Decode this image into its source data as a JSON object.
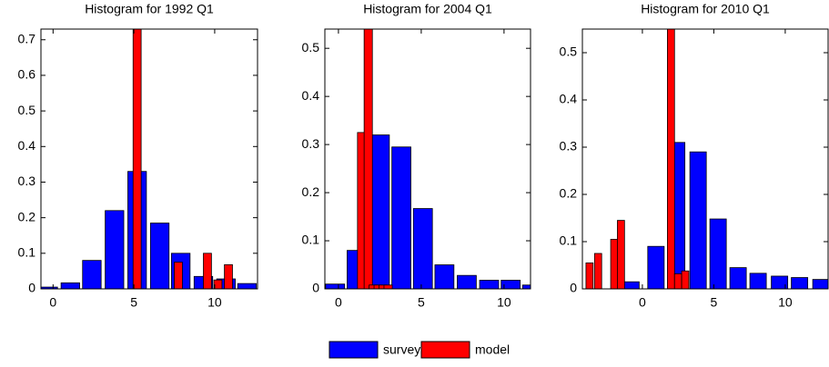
{
  "chart_data": [
    {
      "type": "bar",
      "title": "Histogram for 1992 Q1",
      "xlim": [
        -0.75,
        12.65
      ],
      "ylim": [
        0,
        0.73
      ],
      "xticks": [
        0,
        5,
        10
      ],
      "yticks": [
        0,
        0.1,
        0.2,
        0.3,
        0.4,
        0.5,
        0.6,
        0.7
      ],
      "series": [
        {
          "name": "survey",
          "color": "#0000ff",
          "x": [
            -0.3,
            1.07,
            2.4,
            3.8,
            5.2,
            6.6,
            7.9,
            9.3,
            10.7,
            12.0
          ],
          "values": [
            0.005,
            0.017,
            0.08,
            0.22,
            0.33,
            0.185,
            0.1,
            0.035,
            0.028,
            0.015
          ]
        },
        {
          "name": "model",
          "color": "#ff0000",
          "x": [
            5.2,
            7.75,
            9.55,
            10.2,
            10.85
          ],
          "values": [
            0.73,
            0.075,
            0.1,
            0.025,
            0.068
          ]
        }
      ]
    },
    {
      "type": "bar",
      "title": "Histogram for 2004 Q1",
      "xlim": [
        -0.82,
        11.6
      ],
      "ylim": [
        0,
        0.54
      ],
      "xticks": [
        0,
        5,
        10
      ],
      "yticks": [
        0,
        0.1,
        0.2,
        0.3,
        0.4,
        0.5
      ],
      "series": [
        {
          "color": "#0000ff",
          "x": [
            -0.2,
            1.1,
            2.5,
            3.8,
            5.1,
            6.4,
            7.75,
            9.1,
            10.4,
            11.7
          ],
          "values": [
            0.01,
            0.08,
            0.32,
            0.295,
            0.167,
            0.05,
            0.028,
            0.018,
            0.018,
            0.008
          ]
        },
        {
          "color": "#ff0000",
          "x": [
            1.4,
            1.8,
            2.1,
            2.4,
            2.7,
            3.0
          ],
          "values": [
            0.325,
            0.54,
            0.008,
            0.008,
            0.008,
            0.008
          ]
        }
      ]
    },
    {
      "type": "bar",
      "title": "Histogram for 2010 Q1",
      "xlim": [
        -4.2,
        13.0
      ],
      "ylim": [
        0,
        0.55
      ],
      "xticks": [
        0,
        5,
        10
      ],
      "yticks": [
        0,
        0.1,
        0.2,
        0.3,
        0.4,
        0.5
      ],
      "series": [
        {
          "color": "#0000ff",
          "x": [
            -0.8,
            0.95,
            2.4,
            3.9,
            5.3,
            6.7,
            8.1,
            9.6,
            11.0,
            12.5
          ],
          "values": [
            0.015,
            0.09,
            0.31,
            0.29,
            0.148,
            0.045,
            0.033,
            0.027,
            0.024,
            0.02
          ]
        },
        {
          "color": "#ff0000",
          "x": [
            -3.7,
            -3.1,
            -1.97,
            -1.5,
            2.0,
            2.5,
            3.0
          ],
          "values": [
            0.055,
            0.075,
            0.105,
            0.145,
            0.55,
            0.032,
            0.038
          ]
        }
      ]
    }
  ]
}
